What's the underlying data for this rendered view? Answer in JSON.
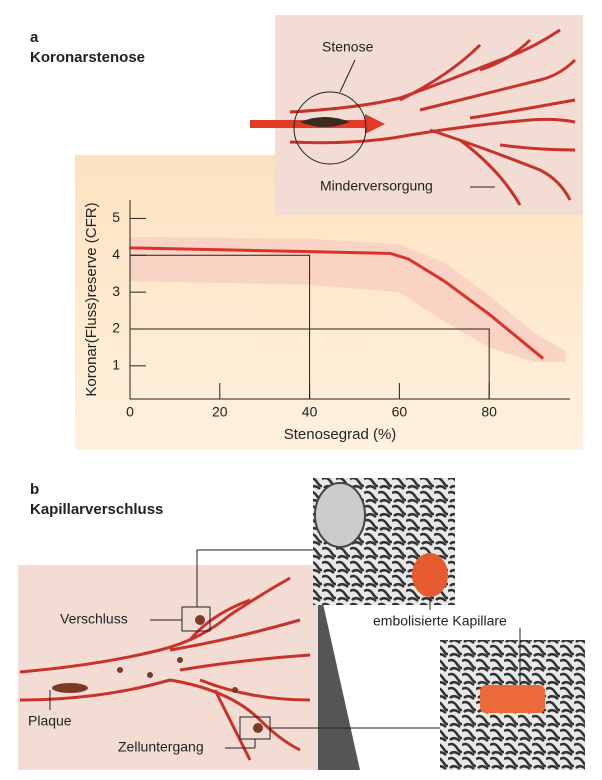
{
  "panel_a": {
    "letter": "a",
    "title": "Koronarstenose",
    "labels": [
      "Stenose",
      "Minderversorgung"
    ]
  },
  "chart_data": {
    "type": "line",
    "xlabel": "Stenosegrad (%)",
    "ylabel": "Koronar(Fluss)reserve (CFR)",
    "x": [
      0,
      20,
      40,
      58,
      62,
      70,
      80,
      92
    ],
    "values": [
      4.2,
      4.15,
      4.1,
      4.05,
      3.9,
      3.3,
      2.4,
      1.2
    ],
    "color": "#d9332a",
    "band": {
      "x": [
        0,
        40,
        60,
        70,
        80,
        90,
        97
      ],
      "upper": [
        4.5,
        4.45,
        4.3,
        3.8,
        2.9,
        1.9,
        1.4
      ],
      "lower": [
        3.3,
        3.2,
        3.0,
        2.2,
        1.5,
        1.1,
        1.1
      ],
      "color": "#f9d3c4"
    },
    "guides": [
      {
        "x": 40,
        "y": 4
      },
      {
        "x": 80,
        "y": 2
      }
    ],
    "xlim": [
      0,
      98
    ],
    "ylim": [
      0.1,
      5.5
    ],
    "xticks": [
      0,
      20,
      40,
      60,
      80
    ],
    "yticks": [
      1,
      2,
      3,
      4,
      5
    ]
  },
  "panel_b": {
    "letter": "b",
    "title": "Kapillarverschluss",
    "labels": [
      "Verschluss",
      "embolisierte Kapillare",
      "Plaque",
      "Zelluntergang"
    ]
  }
}
